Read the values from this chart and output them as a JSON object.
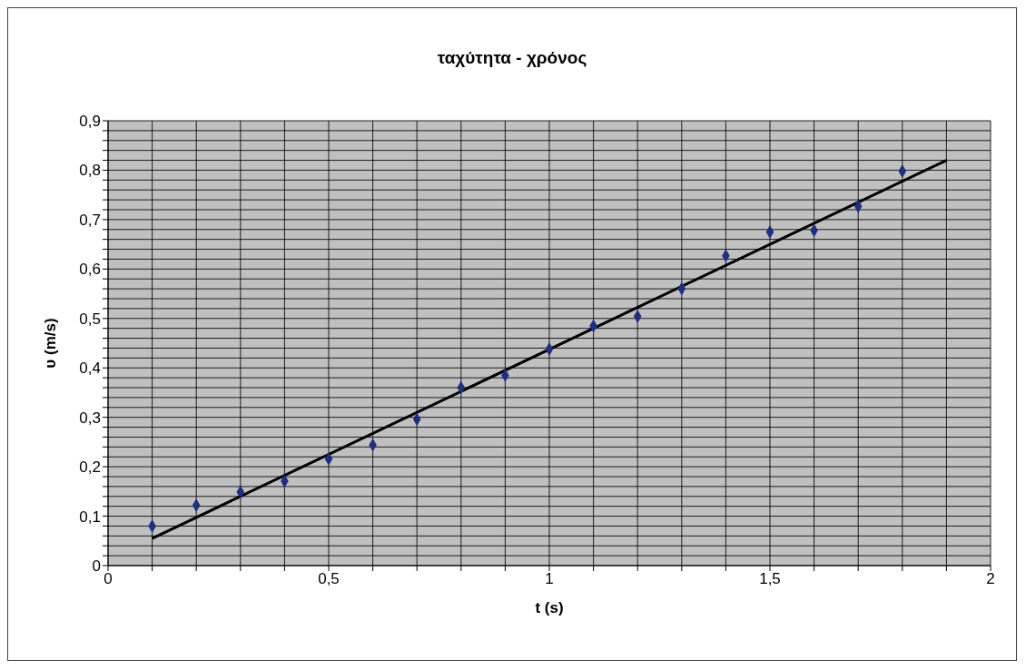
{
  "chart_data": {
    "type": "scatter",
    "title": "ταχύτητα  - χρόνος",
    "xlabel": "t (s)",
    "ylabel": "υ (m/s)",
    "xlim": [
      0,
      2
    ],
    "ylim": [
      0,
      0.9
    ],
    "xticks": [
      0,
      {
        "value": 0.1,
        "label": null
      },
      {
        "value": 0.2,
        "label": null
      },
      {
        "value": 0.3,
        "label": null
      },
      {
        "value": 0.4,
        "label": null
      },
      {
        "value": 0.5,
        "label": "0,5"
      },
      {
        "value": 0.6,
        "label": null
      },
      {
        "value": 0.7,
        "label": null
      },
      {
        "value": 0.8,
        "label": null
      },
      {
        "value": 0.9,
        "label": null
      },
      1,
      {
        "value": 1.1,
        "label": null
      },
      {
        "value": 1.2,
        "label": null
      },
      {
        "value": 1.3,
        "label": null
      },
      {
        "value": 1.4,
        "label": null
      },
      {
        "value": 1.5,
        "label": "1,5"
      },
      {
        "value": 1.6,
        "label": null
      },
      {
        "value": 1.7,
        "label": null
      },
      {
        "value": 1.8,
        "label": null
      },
      {
        "value": 1.9,
        "label": null
      },
      2
    ],
    "yticks": [
      0,
      {
        "value": 0.02,
        "label": null
      },
      {
        "value": 0.04,
        "label": null
      },
      {
        "value": 0.06,
        "label": null
      },
      {
        "value": 0.08,
        "label": null
      },
      {
        "value": 0.1,
        "label": "0,1"
      },
      {
        "value": 0.12,
        "label": null
      },
      {
        "value": 0.14,
        "label": null
      },
      {
        "value": 0.16,
        "label": null
      },
      {
        "value": 0.18,
        "label": null
      },
      {
        "value": 0.2,
        "label": "0,2"
      },
      {
        "value": 0.22,
        "label": null
      },
      {
        "value": 0.24,
        "label": null
      },
      {
        "value": 0.26,
        "label": null
      },
      {
        "value": 0.28,
        "label": null
      },
      {
        "value": 0.3,
        "label": "0,3"
      },
      {
        "value": 0.32,
        "label": null
      },
      {
        "value": 0.34,
        "label": null
      },
      {
        "value": 0.36,
        "label": null
      },
      {
        "value": 0.38,
        "label": null
      },
      {
        "value": 0.4,
        "label": "0,4"
      },
      {
        "value": 0.42,
        "label": null
      },
      {
        "value": 0.44,
        "label": null
      },
      {
        "value": 0.46,
        "label": null
      },
      {
        "value": 0.48,
        "label": null
      },
      {
        "value": 0.5,
        "label": "0,5"
      },
      {
        "value": 0.52,
        "label": null
      },
      {
        "value": 0.54,
        "label": null
      },
      {
        "value": 0.56,
        "label": null
      },
      {
        "value": 0.58,
        "label": null
      },
      {
        "value": 0.6,
        "label": "0,6"
      },
      {
        "value": 0.62,
        "label": null
      },
      {
        "value": 0.64,
        "label": null
      },
      {
        "value": 0.66,
        "label": null
      },
      {
        "value": 0.68,
        "label": null
      },
      {
        "value": 0.7,
        "label": "0,7"
      },
      {
        "value": 0.72,
        "label": null
      },
      {
        "value": 0.74,
        "label": null
      },
      {
        "value": 0.76,
        "label": null
      },
      {
        "value": 0.78,
        "label": null
      },
      {
        "value": 0.8,
        "label": "0,8"
      },
      {
        "value": 0.82,
        "label": null
      },
      {
        "value": 0.84,
        "label": null
      },
      {
        "value": 0.86,
        "label": null
      },
      {
        "value": 0.88,
        "label": null
      },
      {
        "value": 0.9,
        "label": "0,9"
      }
    ],
    "grid": true,
    "series": [
      {
        "marker": "diamond",
        "color": "#1f2f7f",
        "x": [
          0.1,
          0.2,
          0.3,
          0.4,
          0.5,
          0.6,
          0.7,
          0.8,
          0.9,
          1.0,
          1.1,
          1.2,
          1.3,
          1.4,
          1.5,
          1.6,
          1.7,
          1.8
        ],
        "values": [
          0.08,
          0.122,
          0.149,
          0.171,
          0.216,
          0.244,
          0.296,
          0.36,
          0.385,
          0.438,
          0.485,
          0.504,
          0.56,
          0.627,
          0.675,
          0.678,
          0.727,
          0.798
        ]
      },
      {
        "type": "line",
        "marker": "none",
        "color": "#000000",
        "line_style": "solid",
        "x": [
          0.1,
          1.9
        ],
        "values": [
          0.055,
          0.82
        ]
      }
    ]
  }
}
